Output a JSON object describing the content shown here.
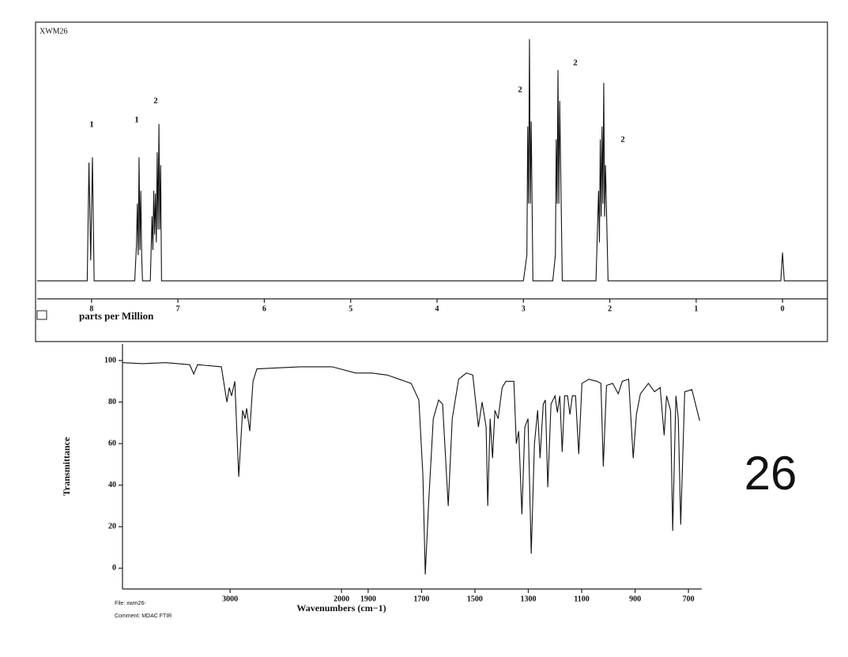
{
  "chart_data": [
    {
      "type": "line",
      "title": "XWM26",
      "x_label": "parts per Million",
      "x": [
        8.63,
        8.05,
        8.03,
        8.01,
        7.99,
        7.97,
        7.5,
        7.48,
        7.47,
        7.46,
        7.45,
        7.44,
        7.43,
        7.42,
        7.41,
        7.32,
        7.3,
        7.29,
        7.28,
        7.27,
        7.26,
        7.25,
        7.24,
        7.23,
        7.22,
        7.21,
        7.2,
        7.19,
        3.0,
        2.96,
        2.95,
        2.94,
        2.93,
        2.92,
        2.91,
        2.89,
        2.66,
        2.63,
        2.62,
        2.61,
        2.6,
        2.59,
        2.58,
        2.55,
        2.16,
        2.13,
        2.12,
        2.11,
        2.1,
        2.09,
        2.08,
        2.07,
        2.06,
        2.05,
        2.02,
        0.02,
        0.0,
        -0.02,
        -0.52
      ],
      "series": [
        {
          "color": "#111111",
          "values": [
            0,
            0,
            46,
            8,
            48,
            0,
            0,
            14,
            30,
            10,
            48,
            12,
            35,
            10,
            0,
            0,
            25,
            12,
            35,
            18,
            34,
            15,
            50,
            20,
            61,
            20,
            45,
            0,
            0,
            10,
            60,
            30,
            94,
            30,
            62,
            0,
            0,
            10,
            55,
            30,
            82,
            30,
            70,
            0,
            0,
            35,
            15,
            55,
            25,
            60,
            30,
            77,
            25,
            45,
            0,
            0,
            11,
            0,
            0
          ]
        }
      ],
      "xlim": [
        8.63,
        -0.52
      ],
      "xticks": [
        8,
        7,
        6,
        5,
        4,
        3,
        2,
        1,
        0
      ],
      "ylim": [
        -7,
        100
      ],
      "annotations": [
        "1",
        "1",
        "2",
        "2",
        "2",
        "2"
      ]
    },
    {
      "type": "line",
      "x_label": "Wavenumbers (cm−1)",
      "y_label": "Transmittance",
      "x": [
        3965,
        3787,
        3574,
        3362,
        3326,
        3291,
        3078,
        3028,
        3007,
        2986,
        2957,
        2922,
        2887,
        2865,
        2851,
        2823,
        2794,
        2759,
        2369,
        2085,
        1947,
        1887,
        1828,
        1739,
        1710,
        1695,
        1686,
        1674,
        1656,
        1636,
        1621,
        1600,
        1585,
        1561,
        1532,
        1508,
        1487,
        1473,
        1458,
        1452,
        1443,
        1434,
        1425,
        1413,
        1398,
        1384,
        1354,
        1345,
        1336,
        1324,
        1313,
        1301,
        1289,
        1277,
        1265,
        1256,
        1244,
        1236,
        1227,
        1215,
        1200,
        1191,
        1182,
        1173,
        1164,
        1153,
        1144,
        1135,
        1123,
        1111,
        1099,
        1073,
        1043,
        1028,
        1019,
        1007,
        984,
        963,
        948,
        924,
        907,
        895,
        880,
        850,
        827,
        806,
        791,
        782,
        767,
        759,
        747,
        738,
        729,
        714,
        687,
        658
      ],
      "series": [
        {
          "color": "#111111",
          "values": [
            99,
            98.5,
            99,
            98,
            93.5,
            98,
            97,
            80,
            87,
            83,
            90,
            44,
            76,
            72,
            77,
            66,
            90,
            96,
            97,
            97,
            94,
            94,
            93,
            89,
            81,
            45,
            -3,
            30,
            72,
            81,
            79,
            30,
            72,
            91,
            94,
            93,
            68,
            80,
            68,
            30,
            72,
            53,
            76,
            72,
            87,
            90,
            90,
            60,
            66,
            26,
            68,
            72,
            7,
            60,
            76,
            53,
            79,
            81,
            39,
            79,
            83,
            75,
            83,
            56,
            83,
            83,
            74,
            83,
            83,
            55,
            89,
            91,
            90,
            89,
            49,
            88,
            89,
            84,
            90,
            91,
            53,
            74,
            84,
            89,
            85,
            87,
            64,
            83,
            76,
            18,
            83,
            72,
            21,
            85,
            86,
            71
          ]
        }
      ],
      "xlim": [
        3965,
        650
      ],
      "x_scale_break": 2000,
      "xticks": [
        3000,
        2000,
        1900,
        1700,
        1500,
        1300,
        1100,
        900,
        700
      ],
      "ylim": [
        -10,
        108
      ],
      "yticks": [
        0,
        20,
        40,
        60,
        80,
        100
      ]
    }
  ],
  "footer": {
    "file": "File: xwm26-",
    "comment": "Comment: MDAC FTIR"
  },
  "compound_label": "26"
}
